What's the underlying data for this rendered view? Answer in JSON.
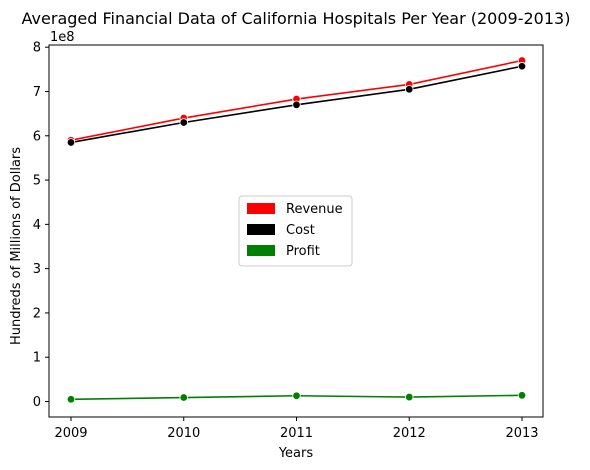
{
  "chart_data": {
    "type": "line",
    "title": "Averaged Financial Data of California Hospitals Per Year (2009-2013)",
    "xlabel": "Years",
    "ylabel": "Hundreds of Millions of Dollars",
    "y_offset_label": "1e8",
    "x": [
      "2009",
      "2010",
      "2011",
      "2012",
      "2013"
    ],
    "ylim": [
      -0.35,
      8.05
    ],
    "y_ticks": [
      "0",
      "1",
      "2",
      "3",
      "4",
      "5",
      "6",
      "7",
      "8"
    ],
    "grid": false,
    "legend_position": "center",
    "series": [
      {
        "name": "Revenue",
        "color": "#ff0000",
        "values": [
          5.9,
          6.4,
          6.83,
          7.16,
          7.7
        ]
      },
      {
        "name": "Cost",
        "color": "#000000",
        "values": [
          5.85,
          6.3,
          6.7,
          7.05,
          7.57
        ]
      },
      {
        "name": "Profit",
        "color": "#008000",
        "values": [
          0.05,
          0.09,
          0.13,
          0.1,
          0.14
        ]
      }
    ]
  }
}
